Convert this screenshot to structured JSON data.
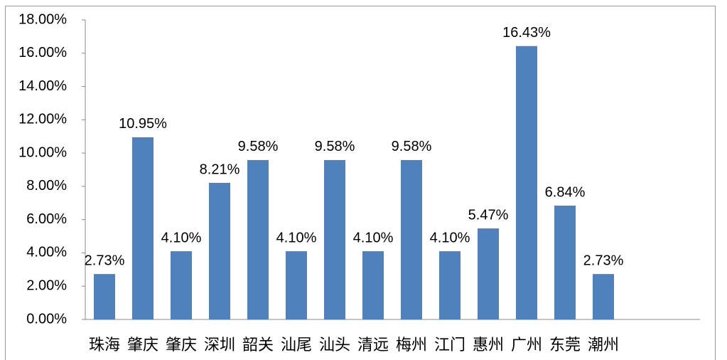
{
  "chart_data": {
    "type": "bar",
    "categories": [
      "珠海",
      "肇庆",
      "肇庆",
      "深圳",
      "韶关",
      "汕尾",
      "汕头",
      "清远",
      "梅州",
      "江门",
      "惠州",
      "广州",
      "东莞",
      "潮州"
    ],
    "values": [
      2.73,
      10.95,
      4.1,
      8.21,
      9.58,
      4.1,
      9.58,
      4.1,
      9.58,
      4.1,
      5.47,
      16.43,
      6.84,
      2.73
    ],
    "value_labels": [
      "2.73%",
      "10.95%",
      "4.10%",
      "8.21%",
      "9.58%",
      "4.10%",
      "9.58%",
      "4.10%",
      "9.58%",
      "4.10%",
      "5.47%",
      "16.43%",
      "6.84%",
      "2.73%"
    ],
    "color": "#4f81bd",
    "ylim": [
      0,
      18
    ],
    "yticks": [
      {
        "value": 0,
        "label": "0.00%"
      },
      {
        "value": 2,
        "label": "2.00%"
      },
      {
        "value": 4,
        "label": "4.00%"
      },
      {
        "value": 6,
        "label": "6.00%"
      },
      {
        "value": 8,
        "label": "8.00%"
      },
      {
        "value": 10,
        "label": "10.00%"
      },
      {
        "value": 12,
        "label": "12.00%"
      },
      {
        "value": 14,
        "label": "14.00%"
      },
      {
        "value": 16,
        "label": "16.00%"
      },
      {
        "value": 18,
        "label": "18.00%"
      }
    ],
    "grid": false
  }
}
